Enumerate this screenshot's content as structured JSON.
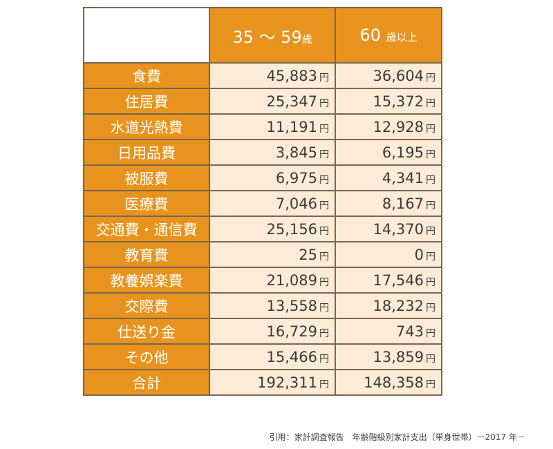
{
  "header": {
    "col_a_value": "35 ～ 59",
    "col_a_unit": "歳",
    "col_b_value": "60",
    "col_b_unit": "歳以上"
  },
  "unit": "円",
  "rows": [
    {
      "label": "食費",
      "a": "45,883",
      "b": "36,604"
    },
    {
      "label": "住居費",
      "a": "25,347",
      "b": "15,372"
    },
    {
      "label": "水道光熱費",
      "a": "11,191",
      "b": "12,928"
    },
    {
      "label": "日用品費",
      "a": "3,845",
      "b": "6,195"
    },
    {
      "label": "被服費",
      "a": "6,975",
      "b": "4,341"
    },
    {
      "label": "医療費",
      "a": "7,046",
      "b": "8,167"
    },
    {
      "label": "交通費・通信費",
      "a": "25,156",
      "b": "14,370"
    },
    {
      "label": "教育費",
      "a": "25",
      "b": "0"
    },
    {
      "label": "教養娯楽費",
      "a": "21,089",
      "b": "17,546"
    },
    {
      "label": "交際費",
      "a": "13,558",
      "b": "18,232"
    },
    {
      "label": "仕送り金",
      "a": "16,729",
      "b": "743"
    },
    {
      "label": "その他",
      "a": "15,466",
      "b": "13,859"
    },
    {
      "label": "合計",
      "a": "192,311",
      "b": "148,358"
    }
  ],
  "caption": "引用：家計調査報告　年齢階級別家計支出（単身世帯）－2017 年－",
  "colors": {
    "header_bg": "#e8931e",
    "value_bg": "#fcebd6",
    "border": "#7a6650"
  }
}
